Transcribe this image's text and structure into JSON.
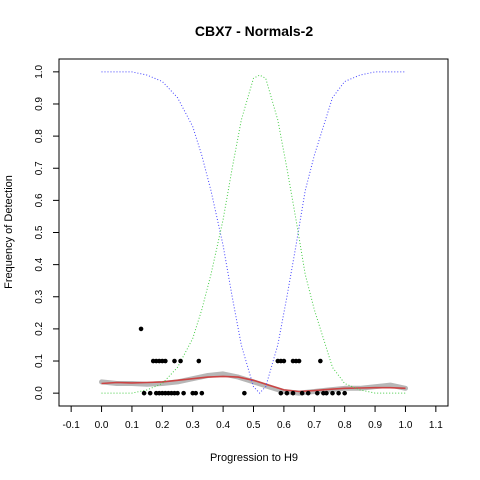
{
  "chart_data": {
    "type": "scatter",
    "title": "CBX7 - Normals-2",
    "xlabel": "Progression to H9",
    "ylabel": "Frequency of Detection",
    "xlim": [
      -0.14,
      1.14
    ],
    "ylim": [
      -0.04,
      1.04
    ],
    "x_ticks": [
      -0.1,
      0.0,
      0.1,
      0.2,
      0.3,
      0.4,
      0.5,
      0.6,
      0.7,
      0.8,
      0.9,
      1.0,
      1.1
    ],
    "x_tick_labels": [
      "-0.1",
      "0.0",
      "0.1",
      "0.2",
      "0.3",
      "0.4",
      "0.5",
      "0.6",
      "0.7",
      "0.8",
      "0.9",
      "1.0",
      "1.1"
    ],
    "y_ticks": [
      0.0,
      0.1,
      0.2,
      0.3,
      0.4,
      0.5,
      0.6,
      0.7,
      0.8,
      0.9,
      1.0
    ],
    "y_tick_labels": [
      "0.0",
      "0.1",
      "0.2",
      "0.3",
      "0.4",
      "0.5",
      "0.6",
      "0.7",
      "0.8",
      "0.9",
      "1.0"
    ],
    "grid": false,
    "series": [
      {
        "kind": "points",
        "color": "#000000",
        "points": [
          [
            0.13,
            0.2
          ],
          [
            0.17,
            0.1
          ],
          [
            0.18,
            0.1
          ],
          [
            0.19,
            0.1
          ],
          [
            0.2,
            0.1
          ],
          [
            0.21,
            0.1
          ],
          [
            0.24,
            0.1
          ],
          [
            0.26,
            0.1
          ],
          [
            0.32,
            0.1
          ],
          [
            0.58,
            0.1
          ],
          [
            0.59,
            0.1
          ],
          [
            0.6,
            0.1
          ],
          [
            0.63,
            0.1
          ],
          [
            0.64,
            0.1
          ],
          [
            0.65,
            0.1
          ],
          [
            0.72,
            0.1
          ],
          [
            0.14,
            0.0
          ],
          [
            0.16,
            0.0
          ],
          [
            0.18,
            0.0
          ],
          [
            0.19,
            0.0
          ],
          [
            0.2,
            0.0
          ],
          [
            0.21,
            0.0
          ],
          [
            0.22,
            0.0
          ],
          [
            0.23,
            0.0
          ],
          [
            0.24,
            0.0
          ],
          [
            0.25,
            0.0
          ],
          [
            0.27,
            0.0
          ],
          [
            0.3,
            0.0
          ],
          [
            0.31,
            0.0
          ],
          [
            0.33,
            0.0
          ],
          [
            0.47,
            0.0
          ],
          [
            0.59,
            0.0
          ],
          [
            0.61,
            0.0
          ],
          [
            0.63,
            0.0
          ],
          [
            0.66,
            0.0
          ],
          [
            0.68,
            0.0
          ],
          [
            0.71,
            0.0
          ],
          [
            0.73,
            0.0
          ],
          [
            0.74,
            0.0
          ],
          [
            0.76,
            0.0
          ],
          [
            0.78,
            0.0
          ],
          [
            0.8,
            0.0
          ]
        ]
      },
      {
        "kind": "band",
        "color": "#aaaaaa",
        "x": [
          0.0,
          0.05,
          0.1,
          0.15,
          0.2,
          0.25,
          0.3,
          0.35,
          0.4,
          0.45,
          0.5,
          0.55,
          0.6,
          0.65,
          0.7,
          0.75,
          0.8,
          0.85,
          0.9,
          0.95,
          1.0
        ],
        "y": [
          0.035,
          0.03,
          0.03,
          0.028,
          0.03,
          0.035,
          0.045,
          0.055,
          0.06,
          0.05,
          0.035,
          0.02,
          0.005,
          0.0,
          0.005,
          0.01,
          0.015,
          0.015,
          0.02,
          0.025,
          0.015
        ]
      },
      {
        "kind": "line",
        "color": "#cc4444",
        "x": [
          0.0,
          0.05,
          0.1,
          0.15,
          0.2,
          0.25,
          0.3,
          0.35,
          0.4,
          0.45,
          0.5,
          0.55,
          0.6,
          0.65,
          0.7,
          0.75,
          0.8,
          0.85,
          0.9,
          0.95,
          1.0
        ],
        "y": [
          0.03,
          0.033,
          0.032,
          0.033,
          0.035,
          0.04,
          0.045,
          0.05,
          0.052,
          0.05,
          0.04,
          0.025,
          0.01,
          0.005,
          0.008,
          0.012,
          0.015,
          0.016,
          0.017,
          0.017,
          0.015
        ]
      },
      {
        "kind": "line",
        "style": "dotted",
        "color": "#4444ff",
        "x": [
          0.0,
          0.1,
          0.15,
          0.2,
          0.25,
          0.3,
          0.33,
          0.36,
          0.4,
          0.43,
          0.46,
          0.5,
          0.52,
          0.54,
          0.58,
          0.61,
          0.64,
          0.67,
          0.7,
          0.73,
          0.76,
          0.8,
          0.85,
          0.9,
          1.0
        ],
        "y": [
          1.0,
          1.0,
          0.99,
          0.97,
          0.92,
          0.83,
          0.74,
          0.63,
          0.46,
          0.3,
          0.15,
          0.02,
          0.0,
          0.02,
          0.15,
          0.3,
          0.46,
          0.63,
          0.74,
          0.83,
          0.92,
          0.97,
          0.99,
          1.0,
          1.0
        ]
      },
      {
        "kind": "line",
        "style": "dotted",
        "color": "#44cc44",
        "x": [
          0.0,
          0.1,
          0.15,
          0.2,
          0.25,
          0.3,
          0.33,
          0.36,
          0.4,
          0.43,
          0.46,
          0.5,
          0.52,
          0.54,
          0.58,
          0.61,
          0.64,
          0.67,
          0.7,
          0.73,
          0.76,
          0.8,
          0.85,
          0.9,
          1.0
        ],
        "y": [
          0.0,
          0.0,
          0.01,
          0.03,
          0.08,
          0.17,
          0.26,
          0.37,
          0.54,
          0.7,
          0.85,
          0.98,
          0.99,
          0.98,
          0.85,
          0.7,
          0.54,
          0.37,
          0.26,
          0.17,
          0.08,
          0.03,
          0.01,
          0.0,
          0.0
        ]
      }
    ]
  }
}
